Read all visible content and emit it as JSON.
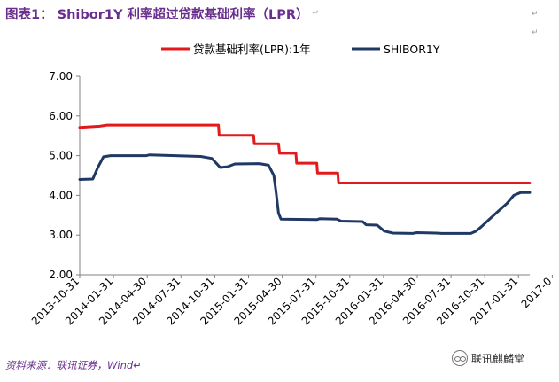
{
  "header": {
    "title": "图表1：  Shibor1Y 利率超过贷款基础利率（LPR）",
    "title_mark": "↵"
  },
  "marks": {
    "corner": "↵",
    "corner2": "↵"
  },
  "footer": {
    "source": "资料来源：联讯证券，Wind↵"
  },
  "watermark": {
    "text": "联讯麒麟堂"
  },
  "colors": {
    "lpr": "#e31a1c",
    "shibor": "#1f3864",
    "title": "#6a2f8e",
    "axis": "#808080"
  },
  "chart_data": {
    "type": "line",
    "title": "",
    "xlabel": "",
    "ylabel": "",
    "ylim": [
      2.0,
      7.0
    ],
    "yticks": [
      "2.00",
      "3.00",
      "4.00",
      "5.00",
      "6.00",
      "7.00"
    ],
    "xticks": [
      "2013-10-31",
      "2014-01-31",
      "2014-04-30",
      "2014-07-31",
      "2014-10-31",
      "2015-01-31",
      "2015-04-30",
      "2015-07-31",
      "2015-10-31",
      "2016-01-31",
      "2016-04-30",
      "2016-07-31",
      "2016-10-31",
      "2017-01-31",
      "2017-0"
    ],
    "legend_position": "top-center",
    "grid": false,
    "series": [
      {
        "name": "贷款基础利率(LPR):1年",
        "color": "#e31a1c",
        "points": [
          [
            "2013-10-25",
            5.71
          ],
          [
            "2013-12-20",
            5.74
          ],
          [
            "2014-01-10",
            5.77
          ],
          [
            "2014-11-20",
            5.77
          ],
          [
            "2014-11-22",
            5.51
          ],
          [
            "2015-02-27",
            5.51
          ],
          [
            "2015-03-01",
            5.3
          ],
          [
            "2015-05-08",
            5.3
          ],
          [
            "2015-05-11",
            5.06
          ],
          [
            "2015-06-26",
            5.06
          ],
          [
            "2015-06-28",
            4.81
          ],
          [
            "2015-08-24",
            4.81
          ],
          [
            "2015-08-26",
            4.56
          ],
          [
            "2015-10-22",
            4.56
          ],
          [
            "2015-10-24",
            4.31
          ],
          [
            "2017-04-15",
            4.31
          ]
        ]
      },
      {
        "name": "SHIBOR1Y",
        "color": "#1f3864",
        "points": [
          [
            "2013-10-25",
            4.4
          ],
          [
            "2013-12-01",
            4.41
          ],
          [
            "2013-12-15",
            4.7
          ],
          [
            "2013-12-31",
            4.97
          ],
          [
            "2014-01-20",
            5.0
          ],
          [
            "2014-05-01",
            5.0
          ],
          [
            "2014-05-10",
            5.02
          ],
          [
            "2014-10-01",
            4.98
          ],
          [
            "2014-11-01",
            4.93
          ],
          [
            "2014-11-25",
            4.7
          ],
          [
            "2014-12-15",
            4.72
          ],
          [
            "2015-01-05",
            4.79
          ],
          [
            "2015-03-15",
            4.8
          ],
          [
            "2015-04-10",
            4.76
          ],
          [
            "2015-04-25",
            4.5
          ],
          [
            "2015-05-01",
            4.1
          ],
          [
            "2015-05-08",
            3.55
          ],
          [
            "2015-05-15",
            3.4
          ],
          [
            "2015-08-25",
            3.39
          ],
          [
            "2015-09-01",
            3.41
          ],
          [
            "2015-10-20",
            3.4
          ],
          [
            "2015-10-31",
            3.35
          ],
          [
            "2015-12-31",
            3.34
          ],
          [
            "2016-01-10",
            3.26
          ],
          [
            "2016-02-10",
            3.25
          ],
          [
            "2016-03-01",
            3.1
          ],
          [
            "2016-03-25",
            3.05
          ],
          [
            "2016-05-20",
            3.04
          ],
          [
            "2016-06-01",
            3.06
          ],
          [
            "2016-07-25",
            3.05
          ],
          [
            "2016-08-10",
            3.04
          ],
          [
            "2016-10-31",
            3.04
          ],
          [
            "2016-11-15",
            3.1
          ],
          [
            "2016-12-01",
            3.22
          ],
          [
            "2016-12-20",
            3.38
          ],
          [
            "2017-01-15",
            3.59
          ],
          [
            "2017-02-10",
            3.8
          ],
          [
            "2017-03-01",
            4.0
          ],
          [
            "2017-03-20",
            4.07
          ],
          [
            "2017-04-15",
            4.07
          ]
        ]
      }
    ]
  }
}
